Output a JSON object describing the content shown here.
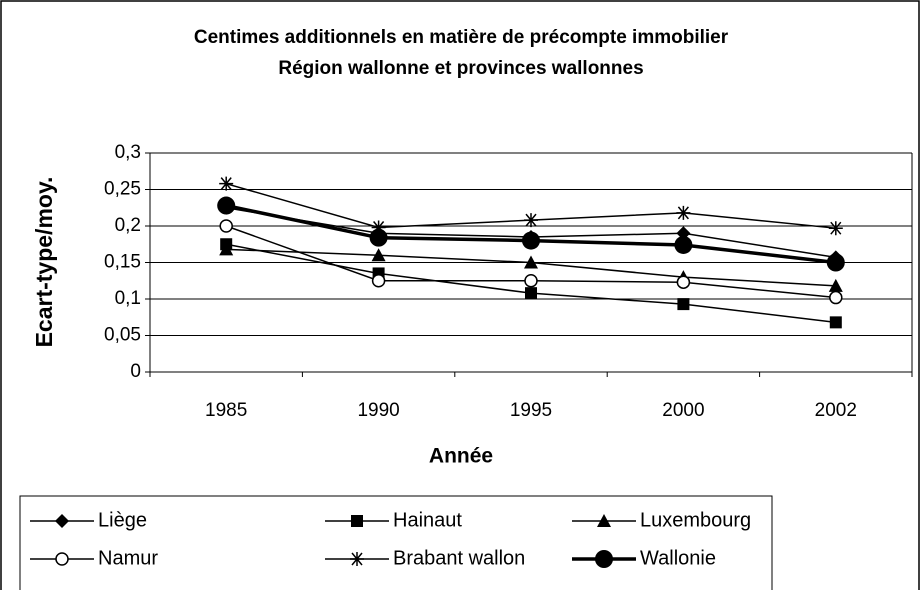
{
  "chart_data": {
    "type": "line",
    "title": "Centimes additionnels en matière de précompte immobilier",
    "subtitle": "Région wallonne et provinces wallonnes",
    "x_label": "Année",
    "y_label": "Ecart-type/moy.",
    "categories": [
      "1985",
      "1990",
      "1995",
      "2000",
      "2002"
    ],
    "ylim": [
      0,
      0.3
    ],
    "yticks": [
      {
        "value": 0,
        "label": "0"
      },
      {
        "value": 0.05,
        "label": "0,05"
      },
      {
        "value": 0.1,
        "label": "0,1"
      },
      {
        "value": 0.15,
        "label": "0,15"
      },
      {
        "value": 0.2,
        "label": "0,2"
      },
      {
        "value": 0.25,
        "label": "0,25"
      },
      {
        "value": 0.3,
        "label": "0,3"
      }
    ],
    "grid": true,
    "legend": "bottom",
    "series": [
      {
        "name": "Liège",
        "color": "#000000",
        "marker": "diamond",
        "line_width": 1.5,
        "values": [
          0.225,
          0.19,
          0.185,
          0.19,
          0.157
        ]
      },
      {
        "name": "Hainaut",
        "color": "#000000",
        "marker": "square",
        "line_width": 1.5,
        "values": [
          0.175,
          0.135,
          0.108,
          0.093,
          0.068
        ]
      },
      {
        "name": "Luxembourg",
        "color": "#000000",
        "marker": "triangle",
        "line_width": 1.5,
        "values": [
          0.168,
          0.16,
          0.15,
          0.13,
          0.118
        ]
      },
      {
        "name": "Namur",
        "color": "#000000",
        "marker": "circle-open",
        "line_width": 1.5,
        "values": [
          0.2,
          0.125,
          0.125,
          0.123,
          0.102
        ]
      },
      {
        "name": "Brabant wallon",
        "color": "#000000",
        "marker": "star",
        "line_width": 1.5,
        "values": [
          0.258,
          0.198,
          0.208,
          0.218,
          0.197
        ]
      },
      {
        "name": "Wallonie",
        "color": "#000000",
        "marker": "circle",
        "line_width": 3.5,
        "values": [
          0.228,
          0.184,
          0.18,
          0.174,
          0.15
        ]
      }
    ]
  }
}
